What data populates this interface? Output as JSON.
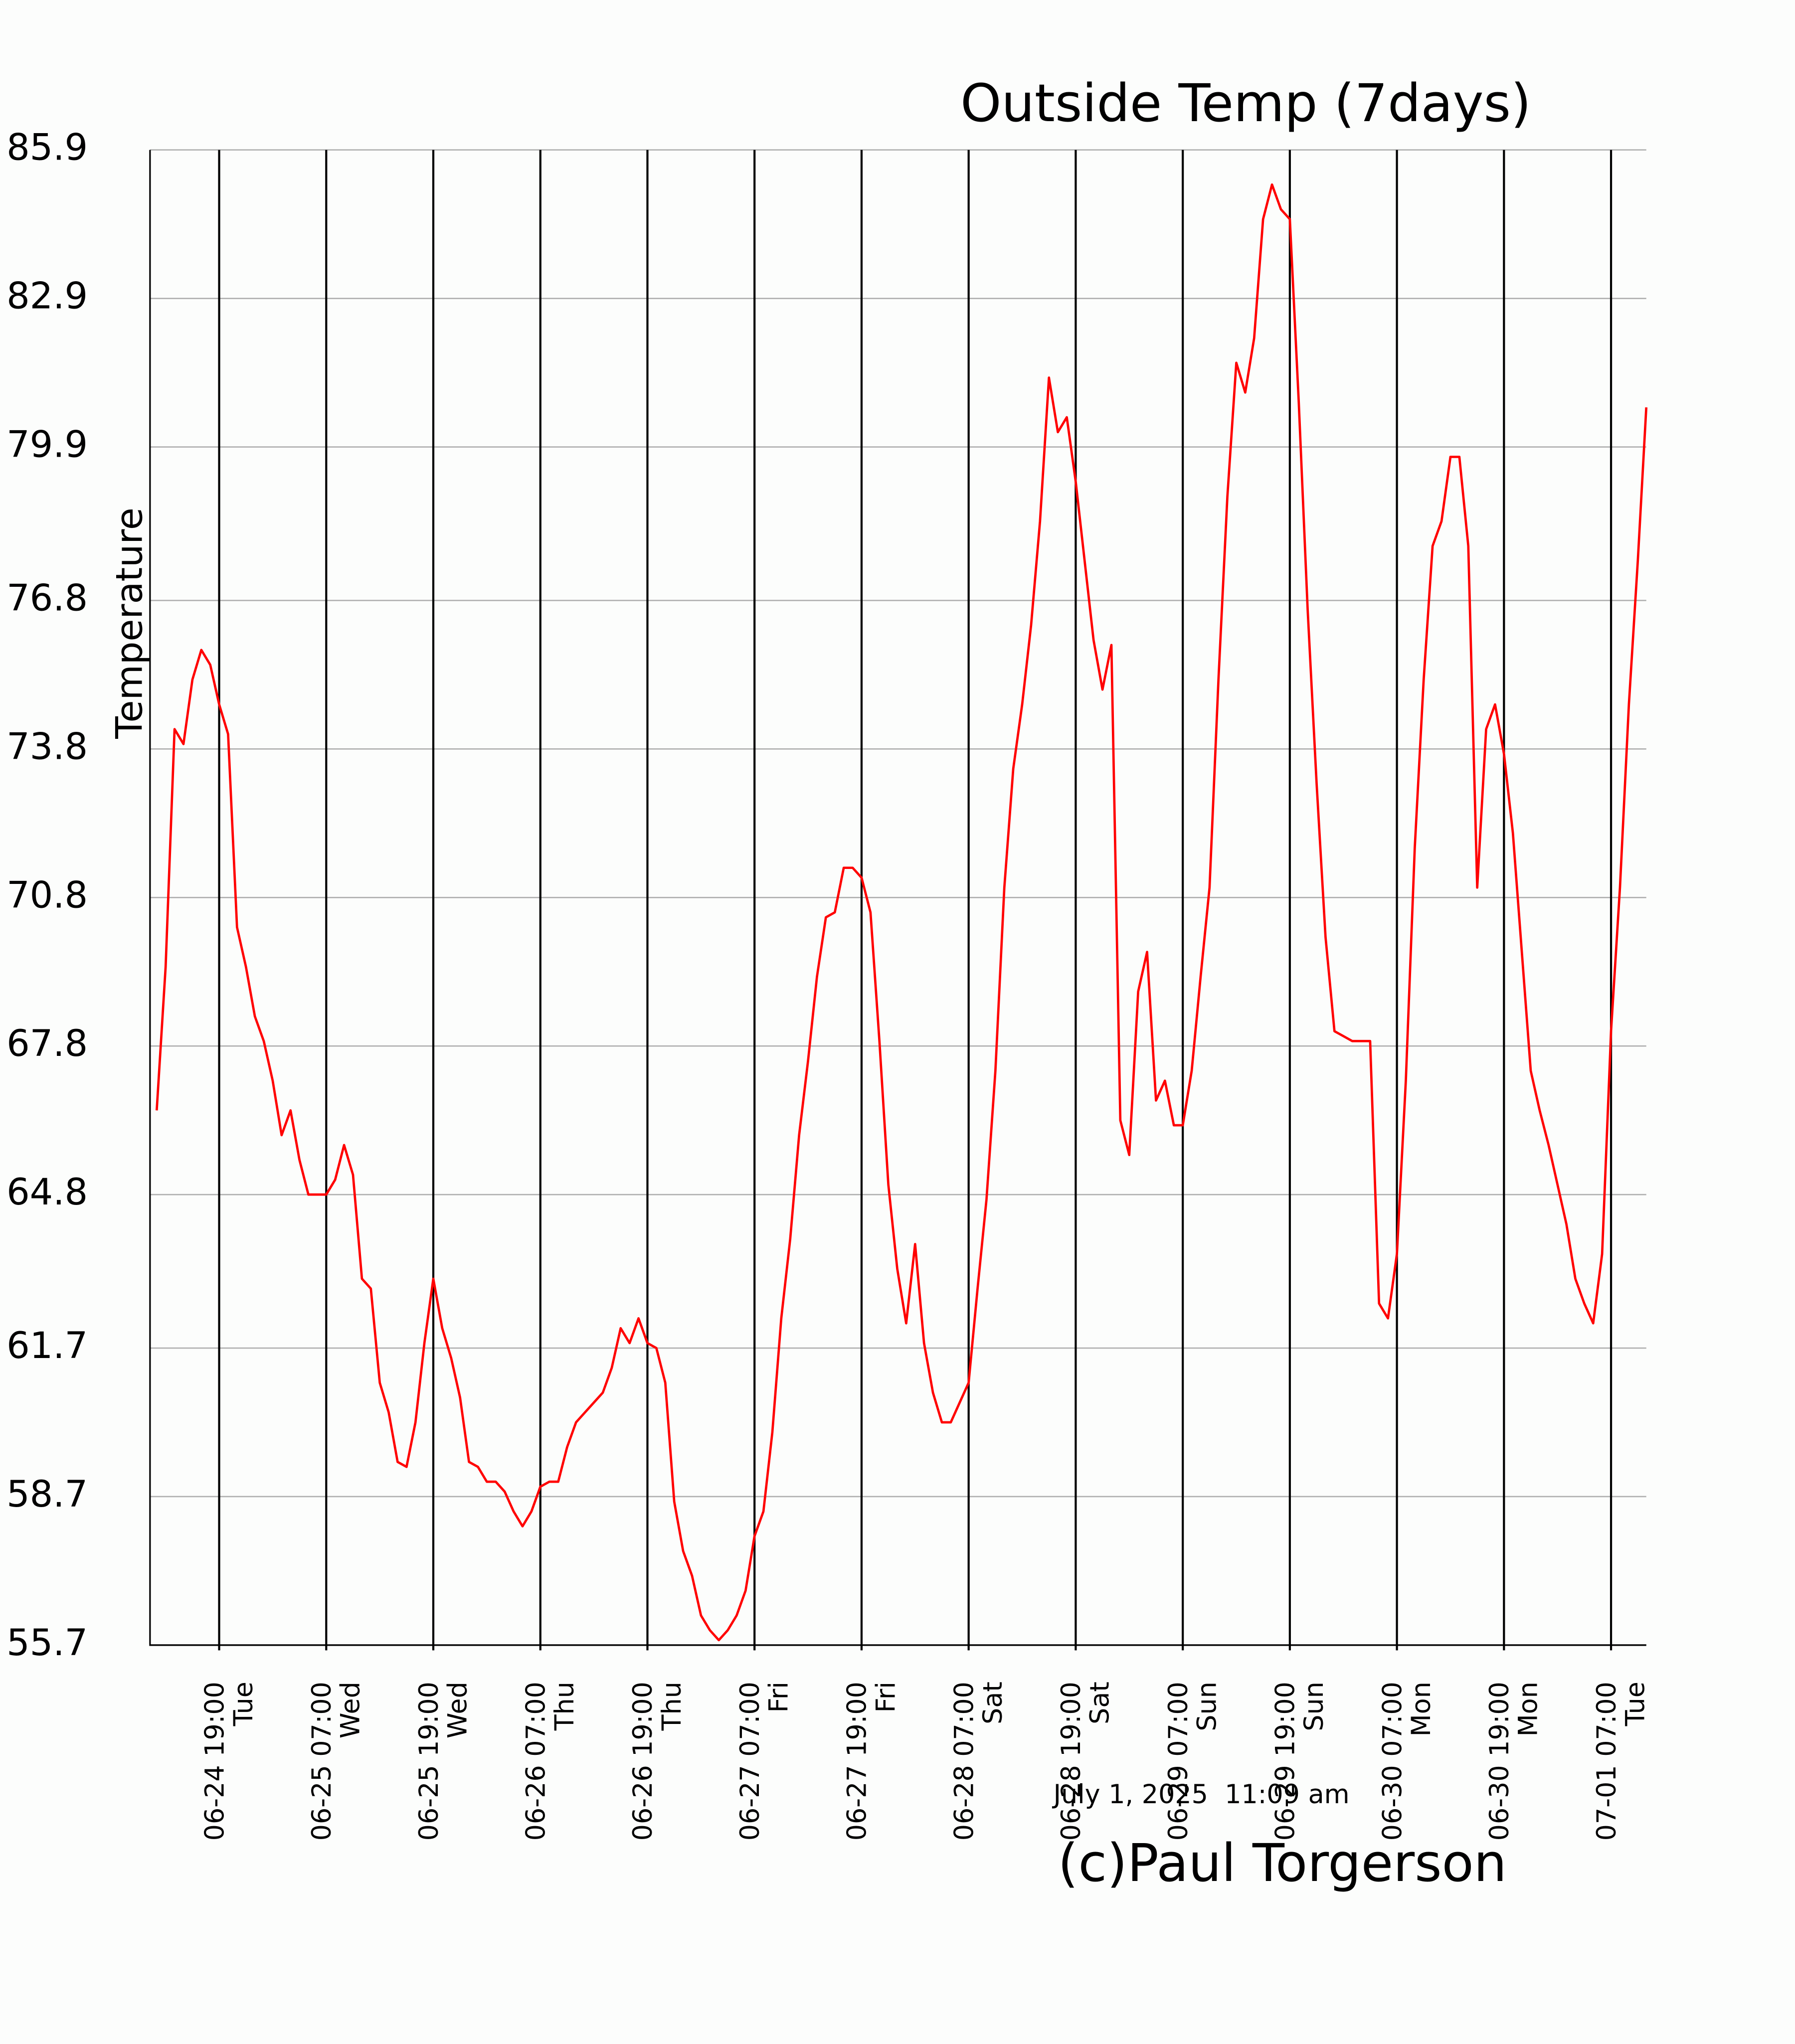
{
  "chart_data": {
    "type": "line",
    "title": "Outside Temp (7days)",
    "y_label": "Temperature",
    "annotations": [
      "July 1, 2025  11:09 am",
      "(c)Paul Torgerson"
    ],
    "x": [
      "06-24 12:00",
      "06-24 13:00",
      "06-24 14:00",
      "06-24 15:00",
      "06-24 16:00",
      "06-24 17:00",
      "06-24 18:00",
      "06-24 19:00",
      "06-24 20:00",
      "06-24 21:00",
      "06-24 22:00",
      "06-24 23:00",
      "06-25 00:00",
      "06-25 01:00",
      "06-25 02:00",
      "06-25 03:00",
      "06-25 04:00",
      "06-25 05:00",
      "06-25 06:00",
      "06-25 07:00",
      "06-25 08:00",
      "06-25 09:00",
      "06-25 10:00",
      "06-25 11:00",
      "06-25 12:00",
      "06-25 13:00",
      "06-25 14:00",
      "06-25 15:00",
      "06-25 16:00",
      "06-25 17:00",
      "06-25 18:00",
      "06-25 19:00",
      "06-25 20:00",
      "06-25 21:00",
      "06-25 22:00",
      "06-25 23:00",
      "06-26 00:00",
      "06-26 01:00",
      "06-26 02:00",
      "06-26 03:00",
      "06-26 04:00",
      "06-26 05:00",
      "06-26 06:00",
      "06-26 07:00",
      "06-26 08:00",
      "06-26 09:00",
      "06-26 10:00",
      "06-26 11:00",
      "06-26 12:00",
      "06-26 13:00",
      "06-26 14:00",
      "06-26 15:00",
      "06-26 16:00",
      "06-26 17:00",
      "06-26 18:00",
      "06-26 19:00",
      "06-26 20:00",
      "06-26 21:00",
      "06-26 22:00",
      "06-26 23:00",
      "06-27 00:00",
      "06-27 01:00",
      "06-27 02:00",
      "06-27 03:00",
      "06-27 04:00",
      "06-27 05:00",
      "06-27 06:00",
      "06-27 07:00",
      "06-27 08:00",
      "06-27 09:00",
      "06-27 10:00",
      "06-27 11:00",
      "06-27 12:00",
      "06-27 13:00",
      "06-27 14:00",
      "06-27 15:00",
      "06-27 16:00",
      "06-27 17:00",
      "06-27 18:00",
      "06-27 19:00",
      "06-27 20:00",
      "06-27 21:00",
      "06-27 22:00",
      "06-27 23:00",
      "06-28 00:00",
      "06-28 01:00",
      "06-28 02:00",
      "06-28 03:00",
      "06-28 04:00",
      "06-28 05:00",
      "06-28 06:00",
      "06-28 07:00",
      "06-28 08:00",
      "06-28 09:00",
      "06-28 10:00",
      "06-28 11:00",
      "06-28 12:00",
      "06-28 13:00",
      "06-28 14:00",
      "06-28 15:00",
      "06-28 16:00",
      "06-28 17:00",
      "06-28 18:00",
      "06-28 19:00",
      "06-28 20:00",
      "06-28 21:00",
      "06-28 22:00",
      "06-28 23:00",
      "06-29 00:00",
      "06-29 01:00",
      "06-29 02:00",
      "06-29 03:00",
      "06-29 04:00",
      "06-29 05:00",
      "06-29 06:00",
      "06-29 07:00",
      "06-29 08:00",
      "06-29 09:00",
      "06-29 10:00",
      "06-29 11:00",
      "06-29 12:00",
      "06-29 13:00",
      "06-29 14:00",
      "06-29 15:00",
      "06-29 16:00",
      "06-29 17:00",
      "06-29 18:00",
      "06-29 19:00",
      "06-29 20:00",
      "06-29 21:00",
      "06-29 22:00",
      "06-29 23:00",
      "06-30 00:00",
      "06-30 01:00",
      "06-30 02:00",
      "06-30 03:00",
      "06-30 04:00",
      "06-30 05:00",
      "06-30 06:00",
      "06-30 07:00",
      "06-30 08:00",
      "06-30 09:00",
      "06-30 10:00",
      "06-30 11:00",
      "06-30 12:00",
      "06-30 13:00",
      "06-30 14:00",
      "06-30 15:00",
      "06-30 16:00",
      "06-30 17:00",
      "06-30 18:00",
      "06-30 19:00",
      "06-30 20:00",
      "06-30 21:00",
      "06-30 22:00",
      "06-30 23:00",
      "07-01 00:00",
      "07-01 01:00",
      "07-01 02:00",
      "07-01 03:00",
      "07-01 04:00",
      "07-01 05:00",
      "07-01 06:00",
      "07-01 07:00",
      "07-01 08:00",
      "07-01 09:00",
      "07-01 10:00",
      "07-01 10:57"
    ],
    "series": [
      {
        "name": "Outside Temp",
        "color": "#ff0000",
        "values": [
          66.5,
          69.4,
          74.2,
          73.9,
          75.2,
          75.8,
          75.5,
          74.7,
          74.1,
          70.2,
          69.4,
          68.4,
          67.9,
          67.1,
          66.0,
          66.5,
          65.5,
          64.8,
          64.8,
          64.8,
          65.1,
          65.8,
          65.2,
          63.1,
          62.9,
          61.0,
          60.4,
          59.4,
          59.3,
          60.2,
          61.8,
          63.1,
          62.1,
          61.5,
          60.7,
          59.4,
          59.3,
          59.0,
          59.0,
          58.8,
          58.4,
          58.1,
          58.4,
          58.9,
          59.0,
          59.0,
          59.7,
          60.2,
          60.4,
          60.6,
          60.8,
          61.3,
          62.1,
          61.8,
          62.3,
          61.8,
          61.7,
          61.0,
          58.6,
          57.6,
          57.1,
          56.3,
          56.0,
          55.8,
          56.0,
          56.3,
          56.8,
          57.9,
          58.4,
          60.0,
          62.3,
          63.9,
          66.0,
          67.5,
          69.2,
          70.4,
          70.5,
          71.4,
          71.4,
          71.2,
          70.5,
          67.9,
          65.0,
          63.3,
          62.2,
          63.8,
          61.8,
          60.8,
          60.2,
          60.2,
          60.6,
          61.0,
          62.9,
          64.7,
          67.3,
          71.0,
          73.4,
          74.7,
          76.3,
          78.4,
          81.3,
          80.2,
          80.5,
          79.2,
          77.6,
          76.0,
          75.0,
          75.9,
          66.3,
          65.6,
          68.9,
          69.7,
          66.7,
          67.1,
          66.2,
          66.2,
          67.3,
          69.2,
          71.0,
          75.2,
          78.9,
          81.6,
          81.0,
          82.1,
          84.5,
          85.2,
          84.7,
          84.5,
          80.8,
          76.6,
          73.1,
          70.0,
          68.1,
          68.0,
          67.9,
          67.9,
          67.9,
          62.6,
          62.3,
          63.6,
          67.1,
          71.8,
          75.2,
          77.9,
          78.4,
          79.7,
          79.7,
          77.9,
          71.0,
          74.2,
          74.7,
          73.7,
          72.1,
          69.7,
          67.3,
          66.5,
          65.8,
          65.0,
          64.2,
          63.1,
          62.6,
          62.2,
          63.6,
          68.1,
          71.0,
          74.7,
          77.6,
          80.7
        ]
      }
    ],
    "xlim": [
      "06-24 11:15",
      "07-01 10:57"
    ],
    "xticks": [
      "06-24 19:00",
      "06-25 07:00",
      "06-25 19:00",
      "06-26 07:00",
      "06-26 19:00",
      "06-27 07:00",
      "06-27 19:00",
      "06-28 07:00",
      "06-28 19:00",
      "06-29 07:00",
      "06-29 19:00",
      "06-30 07:00",
      "06-30 19:00",
      "07-01 07:00"
    ],
    "xtick_weekdays": [
      "Tue",
      "Wed",
      "Wed",
      "Thu",
      "Thu",
      "Fri",
      "Fri",
      "Sat",
      "Sat",
      "Sun",
      "Sun",
      "Mon",
      "Mon",
      "Tue"
    ],
    "ylim": [
      55.7,
      85.9
    ],
    "yticks": [
      55.7,
      58.7,
      61.7,
      64.8,
      67.8,
      70.8,
      73.8,
      76.8,
      79.9,
      82.9,
      85.9
    ],
    "grid": true,
    "grid_color": "#b0b0b0",
    "xgrid_color": "#000000",
    "title_color": "#ff0000"
  }
}
